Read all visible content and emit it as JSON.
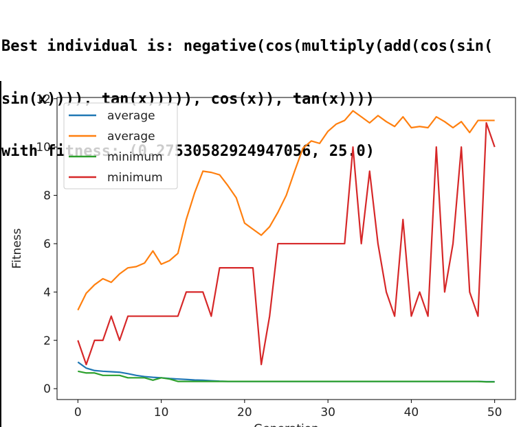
{
  "output": {
    "lines": [
      "Best individual is: negative(cos(multiply(add(cos(sin(",
      "sin(x)))), tan(x))))), cos(x)), tan(x))))",
      "with fitness: (0.27530582924947056, 25.0)"
    ]
  },
  "chart_data": {
    "type": "line",
    "xlabel": "Generation",
    "ylabel": "Fitness",
    "x": [
      0,
      1,
      2,
      3,
      4,
      5,
      6,
      7,
      8,
      9,
      10,
      11,
      12,
      13,
      14,
      15,
      16,
      17,
      18,
      19,
      20,
      21,
      22,
      23,
      24,
      25,
      26,
      27,
      28,
      29,
      30,
      31,
      32,
      33,
      34,
      35,
      36,
      37,
      38,
      39,
      40,
      41,
      42,
      43,
      44,
      45,
      46,
      47,
      48,
      49,
      50
    ],
    "xlim": [
      -2.5,
      52.5
    ],
    "ylim": [
      -0.45,
      12.05
    ],
    "xticks": [
      0,
      10,
      20,
      30,
      40,
      50
    ],
    "yticks": [
      0,
      2,
      4,
      6,
      8,
      10,
      12
    ],
    "legend": "upper left",
    "series": [
      {
        "name": "average",
        "color": "#1f77b4",
        "values": [
          1.1,
          0.85,
          0.75,
          0.72,
          0.7,
          0.68,
          0.62,
          0.55,
          0.5,
          0.47,
          0.45,
          0.42,
          0.4,
          0.38,
          0.36,
          0.35,
          0.33,
          0.31,
          0.3,
          0.3,
          0.3,
          0.3,
          0.3,
          0.3,
          0.3,
          0.3,
          0.3,
          0.3,
          0.3,
          0.3,
          0.3,
          0.3,
          0.3,
          0.3,
          0.3,
          0.3,
          0.3,
          0.3,
          0.3,
          0.3,
          0.3,
          0.3,
          0.3,
          0.3,
          0.3,
          0.3,
          0.3,
          0.3,
          0.3,
          0.29,
          0.29
        ]
      },
      {
        "name": "average",
        "color": "#ff7f0e",
        "values": [
          3.25,
          3.95,
          4.3,
          4.55,
          4.4,
          4.75,
          5.0,
          5.05,
          5.2,
          5.7,
          5.15,
          5.3,
          5.6,
          7.0,
          8.1,
          9.0,
          8.95,
          8.85,
          8.4,
          7.9,
          6.85,
          6.6,
          6.35,
          6.7,
          7.3,
          8.0,
          9.0,
          9.95,
          10.25,
          10.15,
          10.65,
          10.95,
          11.1,
          11.5,
          11.25,
          11.0,
          11.3,
          11.05,
          10.85,
          11.25,
          10.8,
          10.85,
          10.8,
          11.25,
          11.05,
          10.8,
          11.05,
          10.6,
          11.1,
          11.1,
          11.1
        ]
      },
      {
        "name": "minimum",
        "color": "#2ca02c",
        "values": [
          0.72,
          0.65,
          0.65,
          0.55,
          0.55,
          0.55,
          0.45,
          0.45,
          0.45,
          0.35,
          0.45,
          0.4,
          0.3,
          0.3,
          0.3,
          0.3,
          0.3,
          0.3,
          0.3,
          0.3,
          0.3,
          0.3,
          0.3,
          0.3,
          0.3,
          0.3,
          0.3,
          0.3,
          0.3,
          0.3,
          0.3,
          0.3,
          0.3,
          0.3,
          0.3,
          0.3,
          0.3,
          0.3,
          0.3,
          0.3,
          0.3,
          0.3,
          0.3,
          0.3,
          0.3,
          0.3,
          0.3,
          0.3,
          0.3,
          0.28,
          0.28
        ]
      },
      {
        "name": "minimum",
        "color": "#d62728",
        "values": [
          2,
          1,
          2,
          2,
          3,
          2,
          3,
          3,
          3,
          3,
          3,
          3,
          3,
          4,
          4,
          4,
          3,
          5,
          5,
          5,
          5,
          5,
          1,
          3,
          6,
          6,
          6,
          6,
          6,
          6,
          6,
          6,
          6,
          10,
          6,
          9,
          6,
          4,
          3,
          7,
          3,
          4,
          3,
          10,
          4,
          6,
          10,
          4,
          3,
          11,
          10
        ]
      }
    ]
  }
}
